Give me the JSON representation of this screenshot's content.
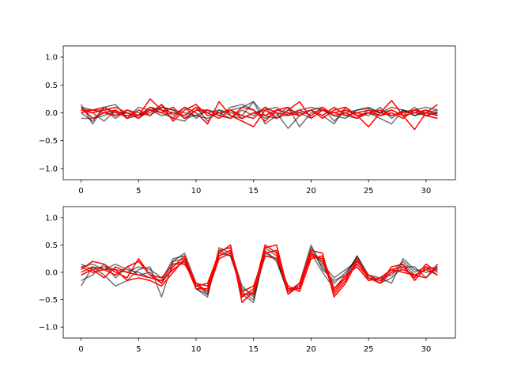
{
  "figure": {
    "colors": {
      "gray_series": "#000000",
      "red_series": "#ff0000"
    }
  },
  "chart_data": [
    {
      "type": "line",
      "title": "",
      "xlabel": "",
      "ylabel": "",
      "xlim": [
        -1.55,
        32.55
      ],
      "ylim": [
        -1.2,
        1.2
      ],
      "xticks": [
        0,
        5,
        10,
        15,
        20,
        25,
        30
      ],
      "xtick_labels": [
        "0",
        "5",
        "10",
        "15",
        "20",
        "25",
        "30"
      ],
      "yticks": [
        -1.0,
        -0.5,
        0.0,
        0.5,
        1.0
      ],
      "ytick_labels": [
        "−1.0",
        "−0.5",
        "0.0",
        "0.5",
        "1.0"
      ],
      "grid": false,
      "x": [
        0,
        1,
        2,
        3,
        4,
        5,
        6,
        7,
        8,
        9,
        10,
        11,
        12,
        13,
        14,
        15,
        16,
        17,
        18,
        19,
        20,
        21,
        22,
        23,
        24,
        25,
        26,
        27,
        28,
        29,
        30,
        31
      ],
      "series": [
        {
          "color": "gray",
          "values": [
            -0.1,
            -0.1,
            -0.05,
            0.02,
            0.0,
            -0.05,
            0.05,
            0.1,
            0.05,
            0.0,
            -0.05,
            -0.1,
            0.0,
            0.05,
            0.1,
            0.2,
            -0.05,
            -0.1,
            -0.02,
            0.05,
            0.1,
            0.05,
            -0.05,
            0.0,
            0.05,
            0.08,
            0.0,
            -0.05,
            0.02,
            0.05,
            0.1,
            0.05
          ]
        },
        {
          "color": "gray",
          "values": [
            0.15,
            -0.2,
            0.1,
            0.15,
            -0.1,
            -0.05,
            0.0,
            0.15,
            -0.05,
            0.1,
            -0.1,
            0.05,
            -0.05,
            0.1,
            0.15,
            0.05,
            -0.1,
            0.0,
            -0.28,
            -0.05,
            0.05,
            0.1,
            -0.15,
            0.05,
            0.0,
            -0.05,
            0.1,
            -0.1,
            0.05,
            0.0,
            -0.05,
            0.02
          ]
        },
        {
          "color": "gray",
          "values": [
            0.05,
            0.0,
            -0.15,
            0.05,
            -0.1,
            0.1,
            0.05,
            -0.05,
            0.0,
            -0.05,
            0.1,
            -0.15,
            0.05,
            0.0,
            -0.05,
            0.2,
            -0.2,
            -0.05,
            0.1,
            -0.25,
            0.0,
            0.05,
            -0.05,
            -0.1,
            0.05,
            0.1,
            0.0,
            0.05,
            -0.05,
            0.1,
            -0.05,
            0.0
          ]
        },
        {
          "color": "gray",
          "values": [
            0.1,
            0.05,
            0.05,
            -0.1,
            0.05,
            0.0,
            -0.05,
            0.1,
            0.05,
            -0.1,
            -0.05,
            0.05,
            0.0,
            -0.1,
            0.05,
            -0.05,
            0.1,
            -0.1,
            0.05,
            0.0,
            0.05,
            -0.05,
            -0.2,
            0.1,
            -0.05,
            0.0,
            -0.1,
            -0.2,
            0.05,
            -0.05,
            0.05,
            -0.02
          ]
        },
        {
          "color": "gray",
          "values": [
            0.0,
            -0.15,
            0.1,
            -0.05,
            0.0,
            -0.1,
            0.1,
            0.0,
            -0.1,
            -0.15,
            0.05,
            0.0,
            0.05,
            -0.05,
            -0.1,
            0.0,
            0.05,
            0.1,
            -0.05,
            0.0,
            -0.1,
            0.05,
            0.0,
            -0.05,
            -0.1,
            0.05,
            0.0,
            0.1,
            0.05,
            -0.05,
            0.0,
            0.05
          ]
        },
        {
          "color": "red",
          "values": [
            0.05,
            0.05,
            0.1,
            0.0,
            -0.05,
            -0.05,
            0.25,
            0.05,
            -0.1,
            0.1,
            0.0,
            -0.2,
            0.2,
            -0.05,
            -0.15,
            -0.25,
            0.05,
            -0.1,
            0.05,
            0.2,
            -0.1,
            0.05,
            0.0,
            0.05,
            -0.05,
            -0.25,
            0.0,
            0.22,
            -0.05,
            -0.3,
            0.0,
            0.15
          ]
        },
        {
          "color": "red",
          "values": [
            0.1,
            -0.1,
            0.0,
            0.05,
            -0.1,
            0.05,
            -0.05,
            0.15,
            -0.15,
            0.05,
            0.15,
            -0.05,
            0.0,
            0.05,
            -0.1,
            0.0,
            -0.05,
            0.05,
            0.1,
            -0.05,
            0.05,
            -0.05,
            0.1,
            -0.05,
            0.0,
            0.05,
            -0.05,
            0.0,
            -0.1,
            0.05,
            0.0,
            -0.05
          ]
        },
        {
          "color": "red",
          "values": [
            0.0,
            0.05,
            0.0,
            -0.05,
            0.05,
            -0.05,
            0.1,
            0.05,
            0.0,
            -0.05,
            0.1,
            0.0,
            -0.1,
            0.05,
            -0.05,
            -0.1,
            0.1,
            0.0,
            -0.05,
            0.05,
            -0.05,
            0.1,
            -0.05,
            0.0,
            -0.1,
            0.0,
            0.05,
            -0.05,
            0.0,
            0.05,
            -0.05,
            -0.1
          ]
        },
        {
          "color": "red",
          "values": [
            0.05,
            0.0,
            0.05,
            0.1,
            0.0,
            -0.1,
            0.05,
            0.0,
            0.1,
            -0.1,
            0.05,
            0.05,
            -0.05,
            -0.1,
            0.1,
            0.05,
            -0.15,
            0.05,
            0.0,
            -0.05,
            0.05,
            -0.1,
            0.05,
            0.1,
            -0.05,
            0.0,
            -0.05,
            0.05,
            -0.05,
            0.0,
            0.05,
            -0.05
          ]
        }
      ]
    },
    {
      "type": "line",
      "title": "",
      "xlabel": "",
      "ylabel": "",
      "xlim": [
        -1.55,
        32.55
      ],
      "ylim": [
        -1.2,
        1.2
      ],
      "xticks": [
        0,
        5,
        10,
        15,
        20,
        25,
        30
      ],
      "xtick_labels": [
        "0",
        "5",
        "10",
        "15",
        "20",
        "25",
        "30"
      ],
      "yticks": [
        -1.0,
        -0.5,
        0.0,
        0.5,
        1.0
      ],
      "ytick_labels": [
        "−1.0",
        "−0.5",
        "0.0",
        "0.5",
        "1.0"
      ],
      "grid": false,
      "x": [
        0,
        1,
        2,
        3,
        4,
        5,
        6,
        7,
        8,
        9,
        10,
        11,
        12,
        13,
        14,
        15,
        16,
        17,
        18,
        19,
        20,
        21,
        22,
        23,
        24,
        25,
        26,
        27,
        28,
        29,
        30,
        31
      ],
      "series": [
        {
          "color": "gray",
          "values": [
            -0.25,
            0.1,
            -0.05,
            -0.25,
            -0.15,
            0.05,
            0.1,
            -0.45,
            0.2,
            0.35,
            -0.2,
            -0.4,
            0.4,
            0.3,
            -0.35,
            -0.5,
            0.35,
            0.25,
            -0.4,
            -0.2,
            0.5,
            0.05,
            -0.15,
            -0.05,
            0.3,
            -0.1,
            -0.15,
            0.0,
            0.2,
            0.0,
            0.1,
            0.05
          ]
        },
        {
          "color": "gray",
          "values": [
            0.1,
            0.15,
            0.05,
            0.15,
            0.05,
            0.0,
            -0.1,
            -0.15,
            0.25,
            0.3,
            -0.3,
            -0.45,
            0.45,
            0.35,
            -0.4,
            -0.55,
            0.4,
            0.2,
            -0.35,
            -0.25,
            0.4,
            0.1,
            -0.2,
            0.0,
            0.25,
            -0.15,
            -0.1,
            -0.2,
            0.25,
            0.05,
            0.0,
            0.05
          ]
        },
        {
          "color": "gray",
          "values": [
            0.15,
            0.05,
            0.1,
            0.05,
            0.0,
            0.1,
            0.05,
            -0.1,
            0.15,
            0.2,
            -0.25,
            -0.35,
            0.3,
            0.4,
            -0.25,
            -0.45,
            0.45,
            0.3,
            -0.3,
            -0.3,
            0.45,
            0.15,
            -0.1,
            0.05,
            0.2,
            -0.05,
            -0.2,
            -0.1,
            0.1,
            0.1,
            -0.1,
            0.1
          ]
        },
        {
          "color": "gray",
          "values": [
            -0.15,
            -0.05,
            0.15,
            -0.1,
            0.1,
            -0.05,
            0.0,
            -0.2,
            0.2,
            0.25,
            -0.3,
            -0.4,
            0.35,
            0.3,
            -0.3,
            -0.4,
            0.3,
            0.25,
            -0.35,
            -0.2,
            0.35,
            0.0,
            -0.3,
            -0.1,
            0.3,
            -0.05,
            -0.1,
            -0.05,
            0.15,
            -0.05,
            0.05,
            -0.05
          ]
        },
        {
          "color": "red",
          "values": [
            0.05,
            0.2,
            0.15,
            0.0,
            -0.1,
            0.25,
            -0.05,
            -0.2,
            0.1,
            0.3,
            -0.25,
            -0.2,
            0.35,
            0.5,
            -0.55,
            -0.35,
            0.5,
            0.35,
            -0.4,
            -0.25,
            0.3,
            0.25,
            -0.4,
            -0.15,
            0.25,
            -0.1,
            -0.2,
            0.1,
            0.15,
            -0.15,
            0.1,
            -0.05
          ]
        },
        {
          "color": "red",
          "values": [
            0.0,
            0.1,
            0.05,
            0.05,
            -0.15,
            -0.1,
            -0.15,
            -0.25,
            0.0,
            0.25,
            -0.2,
            -0.25,
            0.3,
            0.4,
            -0.45,
            -0.3,
            0.45,
            0.5,
            -0.35,
            -0.2,
            0.4,
            0.35,
            -0.45,
            -0.2,
            0.2,
            -0.05,
            -0.15,
            0.05,
            0.1,
            -0.1,
            0.15,
            0.0
          ]
        },
        {
          "color": "red",
          "values": [
            -0.05,
            0.05,
            -0.1,
            0.1,
            0.0,
            -0.05,
            -0.1,
            -0.15,
            0.05,
            0.2,
            -0.3,
            -0.3,
            0.4,
            0.45,
            -0.35,
            -0.25,
            0.35,
            0.4,
            -0.3,
            -0.3,
            0.35,
            0.2,
            -0.35,
            -0.1,
            0.15,
            -0.1,
            -0.2,
            0.0,
            0.05,
            -0.05,
            0.05,
            0.1
          ]
        },
        {
          "color": "red",
          "values": [
            0.1,
            0.0,
            0.05,
            -0.05,
            0.1,
            0.2,
            -0.05,
            -0.1,
            0.15,
            0.15,
            -0.2,
            -0.35,
            0.25,
            0.35,
            -0.4,
            -0.4,
            0.3,
            0.25,
            -0.25,
            -0.35,
            0.25,
            0.3,
            -0.3,
            -0.05,
            0.1,
            -0.15,
            -0.1,
            0.05,
            0.0,
            -0.05,
            -0.1,
            0.15
          ]
        }
      ]
    }
  ]
}
